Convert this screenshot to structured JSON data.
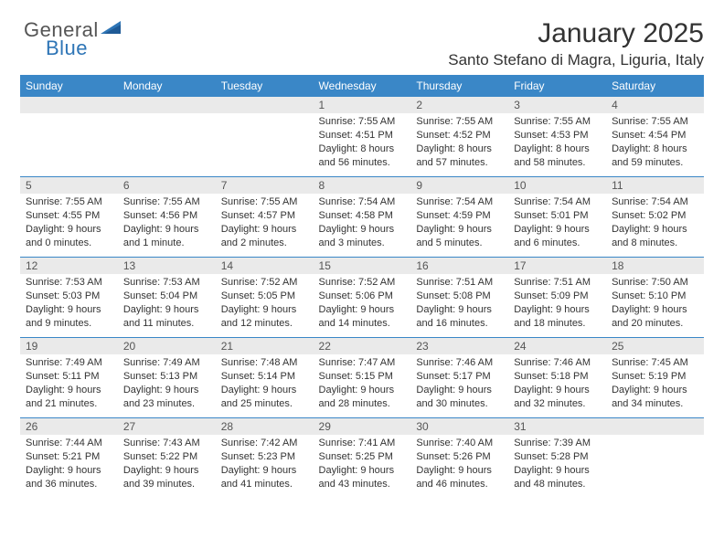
{
  "brand": {
    "part1": "General",
    "part2": "Blue"
  },
  "title": "January 2025",
  "location": "Santo Stefano di Magra, Liguria, Italy",
  "colors": {
    "header_bg": "#3a87c7",
    "header_text": "#ffffff",
    "daynum_bg": "#eaeaea",
    "row_border": "#3a87c7",
    "body_text": "#333333",
    "brand_gray": "#555555",
    "brand_blue": "#2e75b6"
  },
  "weekdays": [
    "Sunday",
    "Monday",
    "Tuesday",
    "Wednesday",
    "Thursday",
    "Friday",
    "Saturday"
  ],
  "weeks": [
    [
      {
        "day": "",
        "sunrise": "",
        "sunset": "",
        "daylight": ""
      },
      {
        "day": "",
        "sunrise": "",
        "sunset": "",
        "daylight": ""
      },
      {
        "day": "",
        "sunrise": "",
        "sunset": "",
        "daylight": ""
      },
      {
        "day": "1",
        "sunrise": "Sunrise: 7:55 AM",
        "sunset": "Sunset: 4:51 PM",
        "daylight": "Daylight: 8 hours and 56 minutes."
      },
      {
        "day": "2",
        "sunrise": "Sunrise: 7:55 AM",
        "sunset": "Sunset: 4:52 PM",
        "daylight": "Daylight: 8 hours and 57 minutes."
      },
      {
        "day": "3",
        "sunrise": "Sunrise: 7:55 AM",
        "sunset": "Sunset: 4:53 PM",
        "daylight": "Daylight: 8 hours and 58 minutes."
      },
      {
        "day": "4",
        "sunrise": "Sunrise: 7:55 AM",
        "sunset": "Sunset: 4:54 PM",
        "daylight": "Daylight: 8 hours and 59 minutes."
      }
    ],
    [
      {
        "day": "5",
        "sunrise": "Sunrise: 7:55 AM",
        "sunset": "Sunset: 4:55 PM",
        "daylight": "Daylight: 9 hours and 0 minutes."
      },
      {
        "day": "6",
        "sunrise": "Sunrise: 7:55 AM",
        "sunset": "Sunset: 4:56 PM",
        "daylight": "Daylight: 9 hours and 1 minute."
      },
      {
        "day": "7",
        "sunrise": "Sunrise: 7:55 AM",
        "sunset": "Sunset: 4:57 PM",
        "daylight": "Daylight: 9 hours and 2 minutes."
      },
      {
        "day": "8",
        "sunrise": "Sunrise: 7:54 AM",
        "sunset": "Sunset: 4:58 PM",
        "daylight": "Daylight: 9 hours and 3 minutes."
      },
      {
        "day": "9",
        "sunrise": "Sunrise: 7:54 AM",
        "sunset": "Sunset: 4:59 PM",
        "daylight": "Daylight: 9 hours and 5 minutes."
      },
      {
        "day": "10",
        "sunrise": "Sunrise: 7:54 AM",
        "sunset": "Sunset: 5:01 PM",
        "daylight": "Daylight: 9 hours and 6 minutes."
      },
      {
        "day": "11",
        "sunrise": "Sunrise: 7:54 AM",
        "sunset": "Sunset: 5:02 PM",
        "daylight": "Daylight: 9 hours and 8 minutes."
      }
    ],
    [
      {
        "day": "12",
        "sunrise": "Sunrise: 7:53 AM",
        "sunset": "Sunset: 5:03 PM",
        "daylight": "Daylight: 9 hours and 9 minutes."
      },
      {
        "day": "13",
        "sunrise": "Sunrise: 7:53 AM",
        "sunset": "Sunset: 5:04 PM",
        "daylight": "Daylight: 9 hours and 11 minutes."
      },
      {
        "day": "14",
        "sunrise": "Sunrise: 7:52 AM",
        "sunset": "Sunset: 5:05 PM",
        "daylight": "Daylight: 9 hours and 12 minutes."
      },
      {
        "day": "15",
        "sunrise": "Sunrise: 7:52 AM",
        "sunset": "Sunset: 5:06 PM",
        "daylight": "Daylight: 9 hours and 14 minutes."
      },
      {
        "day": "16",
        "sunrise": "Sunrise: 7:51 AM",
        "sunset": "Sunset: 5:08 PM",
        "daylight": "Daylight: 9 hours and 16 minutes."
      },
      {
        "day": "17",
        "sunrise": "Sunrise: 7:51 AM",
        "sunset": "Sunset: 5:09 PM",
        "daylight": "Daylight: 9 hours and 18 minutes."
      },
      {
        "day": "18",
        "sunrise": "Sunrise: 7:50 AM",
        "sunset": "Sunset: 5:10 PM",
        "daylight": "Daylight: 9 hours and 20 minutes."
      }
    ],
    [
      {
        "day": "19",
        "sunrise": "Sunrise: 7:49 AM",
        "sunset": "Sunset: 5:11 PM",
        "daylight": "Daylight: 9 hours and 21 minutes."
      },
      {
        "day": "20",
        "sunrise": "Sunrise: 7:49 AM",
        "sunset": "Sunset: 5:13 PM",
        "daylight": "Daylight: 9 hours and 23 minutes."
      },
      {
        "day": "21",
        "sunrise": "Sunrise: 7:48 AM",
        "sunset": "Sunset: 5:14 PM",
        "daylight": "Daylight: 9 hours and 25 minutes."
      },
      {
        "day": "22",
        "sunrise": "Sunrise: 7:47 AM",
        "sunset": "Sunset: 5:15 PM",
        "daylight": "Daylight: 9 hours and 28 minutes."
      },
      {
        "day": "23",
        "sunrise": "Sunrise: 7:46 AM",
        "sunset": "Sunset: 5:17 PM",
        "daylight": "Daylight: 9 hours and 30 minutes."
      },
      {
        "day": "24",
        "sunrise": "Sunrise: 7:46 AM",
        "sunset": "Sunset: 5:18 PM",
        "daylight": "Daylight: 9 hours and 32 minutes."
      },
      {
        "day": "25",
        "sunrise": "Sunrise: 7:45 AM",
        "sunset": "Sunset: 5:19 PM",
        "daylight": "Daylight: 9 hours and 34 minutes."
      }
    ],
    [
      {
        "day": "26",
        "sunrise": "Sunrise: 7:44 AM",
        "sunset": "Sunset: 5:21 PM",
        "daylight": "Daylight: 9 hours and 36 minutes."
      },
      {
        "day": "27",
        "sunrise": "Sunrise: 7:43 AM",
        "sunset": "Sunset: 5:22 PM",
        "daylight": "Daylight: 9 hours and 39 minutes."
      },
      {
        "day": "28",
        "sunrise": "Sunrise: 7:42 AM",
        "sunset": "Sunset: 5:23 PM",
        "daylight": "Daylight: 9 hours and 41 minutes."
      },
      {
        "day": "29",
        "sunrise": "Sunrise: 7:41 AM",
        "sunset": "Sunset: 5:25 PM",
        "daylight": "Daylight: 9 hours and 43 minutes."
      },
      {
        "day": "30",
        "sunrise": "Sunrise: 7:40 AM",
        "sunset": "Sunset: 5:26 PM",
        "daylight": "Daylight: 9 hours and 46 minutes."
      },
      {
        "day": "31",
        "sunrise": "Sunrise: 7:39 AM",
        "sunset": "Sunset: 5:28 PM",
        "daylight": "Daylight: 9 hours and 48 minutes."
      },
      {
        "day": "",
        "sunrise": "",
        "sunset": "",
        "daylight": ""
      }
    ]
  ]
}
